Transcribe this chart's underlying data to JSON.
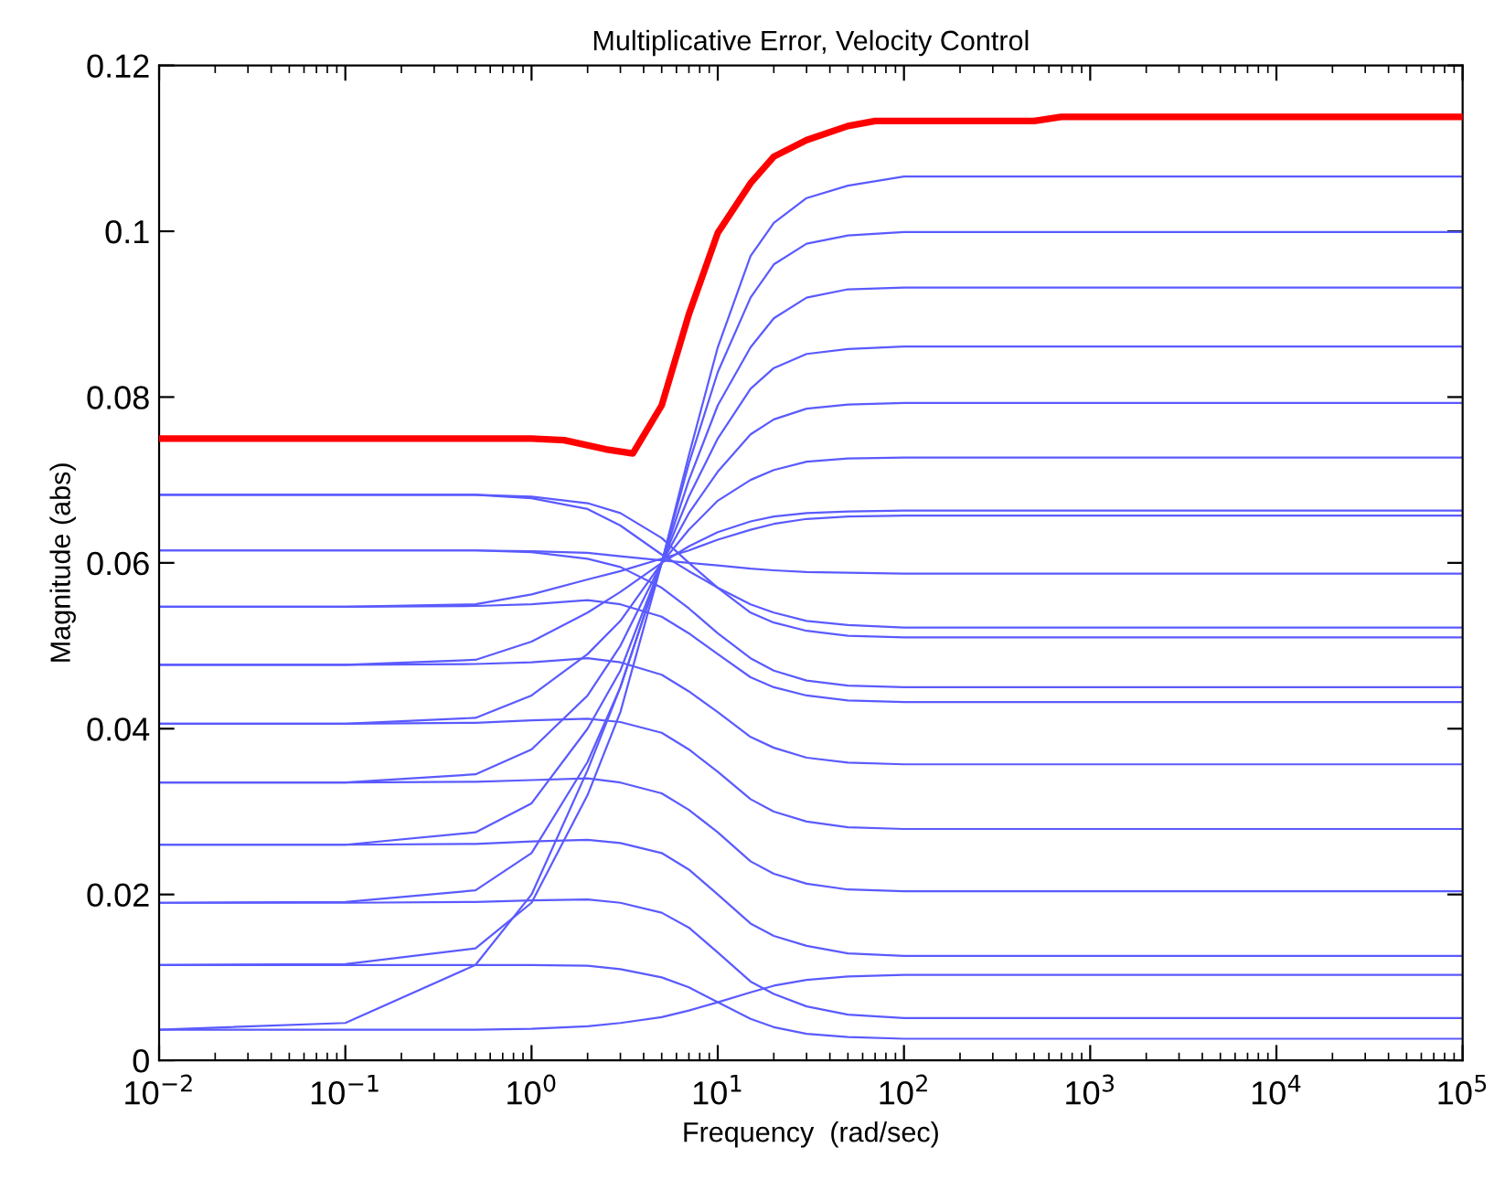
{
  "chart_data": {
    "type": "line",
    "title": "Multiplicative Error, Velocity Control",
    "xlabel": "Frequency  (rad/sec)",
    "ylabel": "Magnitude (abs)",
    "log": "x",
    "grid": false,
    "legend": false,
    "marker": "none",
    "line_style": "solid",
    "xlim": [
      0.01,
      100000
    ],
    "ylim": [
      0,
      0.12
    ],
    "xticks": [
      {
        "value": 0.01,
        "label": "10$^{−2}$"
      },
      {
        "value": 0.1,
        "label": "10$^{−1}$"
      },
      {
        "value": 1,
        "label": "10$^{0}$"
      },
      {
        "value": 10,
        "label": "10$^{1}$"
      },
      {
        "value": 100,
        "label": "10$^{2}$"
      },
      {
        "value": 1000,
        "label": "10$^{3}$"
      },
      {
        "value": 10000,
        "label": "10$^{4}$"
      },
      {
        "value": 100000,
        "label": "10$^{5}$"
      }
    ],
    "yticks": [
      0,
      0.02,
      0.04,
      0.06,
      0.08,
      0.1,
      0.12
    ],
    "x": [
      0.01,
      0.1,
      0.5,
      1,
      2,
      3,
      5,
      7,
      10,
      15,
      20,
      30,
      50,
      100,
      100000
    ],
    "series": [
      {
        "color": "#5a5aff",
        "values": [
          0.0037,
          0.0045,
          0.0115,
          0.02,
          0.035,
          0.045,
          0.06,
          0.073,
          0.086,
          0.097,
          0.101,
          0.104,
          0.1055,
          0.1066,
          0.1066
        ]
      },
      {
        "color": "#5a5aff",
        "values": [
          0.0115,
          0.0116,
          0.0135,
          0.019,
          0.032,
          0.042,
          0.06,
          0.072,
          0.083,
          0.092,
          0.096,
          0.0985,
          0.0995,
          0.0999,
          0.0999
        ]
      },
      {
        "color": "#5a5aff",
        "values": [
          0.019,
          0.0191,
          0.0205,
          0.025,
          0.036,
          0.045,
          0.06,
          0.07,
          0.079,
          0.086,
          0.0895,
          0.092,
          0.093,
          0.0932,
          0.0932
        ]
      },
      {
        "color": "#5a5aff",
        "values": [
          0.026,
          0.026,
          0.0275,
          0.031,
          0.04,
          0.047,
          0.06,
          0.068,
          0.075,
          0.081,
          0.0835,
          0.0852,
          0.0858,
          0.0861,
          0.0861
        ]
      },
      {
        "color": "#5a5aff",
        "values": [
          0.0335,
          0.0335,
          0.0345,
          0.0375,
          0.044,
          0.05,
          0.06,
          0.066,
          0.071,
          0.0755,
          0.0773,
          0.0786,
          0.0791,
          0.0793,
          0.0793
        ]
      },
      {
        "color": "#5a5aff",
        "values": [
          0.0406,
          0.0406,
          0.0413,
          0.044,
          0.049,
          0.053,
          0.06,
          0.064,
          0.0675,
          0.07,
          0.0712,
          0.0722,
          0.0726,
          0.0727,
          0.0727
        ]
      },
      {
        "color": "#5a5aff",
        "values": [
          0.0477,
          0.0477,
          0.0483,
          0.0505,
          0.054,
          0.0565,
          0.06,
          0.062,
          0.0637,
          0.065,
          0.0656,
          0.066,
          0.0662,
          0.0663,
          0.0663
        ]
      },
      {
        "color": "#5a5aff",
        "values": [
          0.0547,
          0.0547,
          0.055,
          0.0562,
          0.058,
          0.059,
          0.0605,
          0.0615,
          0.0628,
          0.064,
          0.0647,
          0.0653,
          0.0656,
          0.0657,
          0.0657
        ]
      },
      {
        "color": "#5a5aff",
        "values": [
          0.0615,
          0.0615,
          0.0615,
          0.0614,
          0.0612,
          0.0608,
          0.0603,
          0.06,
          0.0597,
          0.0593,
          0.0591,
          0.0589,
          0.0588,
          0.0587,
          0.0587
        ]
      },
      {
        "color": "#5a5aff",
        "values": [
          0.0682,
          0.0682,
          0.0682,
          0.0678,
          0.0665,
          0.0645,
          0.061,
          0.059,
          0.057,
          0.055,
          0.054,
          0.053,
          0.0525,
          0.0522,
          0.0522
        ]
      },
      {
        "color": "#5a5aff",
        "values": [
          0.0682,
          0.0682,
          0.0682,
          0.068,
          0.0672,
          0.066,
          0.063,
          0.06,
          0.057,
          0.054,
          0.0528,
          0.0518,
          0.0512,
          0.051,
          0.051
        ]
      },
      {
        "color": "#5a5aff",
        "values": [
          0.0615,
          0.0615,
          0.0615,
          0.0613,
          0.0605,
          0.0595,
          0.057,
          0.0545,
          0.0515,
          0.0485,
          0.047,
          0.0458,
          0.0452,
          0.045,
          0.045
        ]
      },
      {
        "color": "#5a5aff",
        "values": [
          0.0547,
          0.0547,
          0.0548,
          0.055,
          0.0555,
          0.055,
          0.0535,
          0.0515,
          0.049,
          0.0462,
          0.045,
          0.044,
          0.0434,
          0.0432,
          0.0432
        ]
      },
      {
        "color": "#5a5aff",
        "values": [
          0.0477,
          0.0477,
          0.0478,
          0.048,
          0.0485,
          0.048,
          0.0465,
          0.0445,
          0.042,
          0.039,
          0.0377,
          0.0365,
          0.0359,
          0.0357,
          0.0357
        ]
      },
      {
        "color": "#5a5aff",
        "values": [
          0.0406,
          0.0406,
          0.0407,
          0.041,
          0.0412,
          0.0408,
          0.0395,
          0.0375,
          0.0348,
          0.0315,
          0.03,
          0.0288,
          0.0281,
          0.0279,
          0.0279
        ]
      },
      {
        "color": "#5a5aff",
        "values": [
          0.0335,
          0.0335,
          0.0336,
          0.0338,
          0.034,
          0.0335,
          0.0322,
          0.0302,
          0.0275,
          0.024,
          0.0225,
          0.0213,
          0.0206,
          0.0204,
          0.0204
        ]
      },
      {
        "color": "#5a5aff",
        "values": [
          0.026,
          0.026,
          0.0261,
          0.0264,
          0.0266,
          0.0262,
          0.025,
          0.023,
          0.02,
          0.0165,
          0.015,
          0.0138,
          0.0129,
          0.0126,
          0.0126
        ]
      },
      {
        "color": "#5a5aff",
        "values": [
          0.019,
          0.019,
          0.0191,
          0.0193,
          0.0194,
          0.019,
          0.0178,
          0.016,
          0.013,
          0.0095,
          0.008,
          0.0065,
          0.0055,
          0.0051,
          0.0051
        ]
      },
      {
        "color": "#5a5aff",
        "values": [
          0.0115,
          0.0115,
          0.0115,
          0.0115,
          0.0114,
          0.011,
          0.01,
          0.0088,
          0.007,
          0.005,
          0.004,
          0.0032,
          0.0028,
          0.0026,
          0.0026
        ]
      },
      {
        "color": "#5a5aff",
        "values": [
          0.0037,
          0.0037,
          0.0037,
          0.0038,
          0.0041,
          0.0045,
          0.0052,
          0.006,
          0.007,
          0.0082,
          0.009,
          0.0097,
          0.0101,
          0.0103,
          0.0103
        ]
      },
      {
        "color": "#ff0000",
        "x": [
          0.01,
          0.1,
          1,
          1.5,
          2.5,
          3.5,
          5,
          7,
          10,
          15,
          20,
          30,
          50,
          70,
          500,
          700,
          100000
        ],
        "values": [
          0.075,
          0.075,
          0.075,
          0.0748,
          0.0737,
          0.0732,
          0.079,
          0.09,
          0.0998,
          0.1058,
          0.109,
          0.111,
          0.1127,
          0.1133,
          0.1133,
          0.1138,
          0.1138
        ]
      }
    ]
  }
}
